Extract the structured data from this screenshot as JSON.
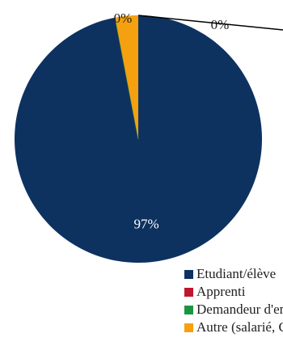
{
  "chart_data": {
    "type": "pie",
    "categories": [
      "Etudiant/élève",
      "Apprenti",
      "Demandeur d'emploi",
      "Autre (salarié, CIF…)"
    ],
    "values": [
      97,
      0,
      0,
      3
    ],
    "value_labels": [
      "97%",
      "0%",
      "0%",
      null
    ],
    "colors": [
      "#0d3260",
      "#c0152f",
      "#1a9641",
      "#f5a00f"
    ]
  }
}
